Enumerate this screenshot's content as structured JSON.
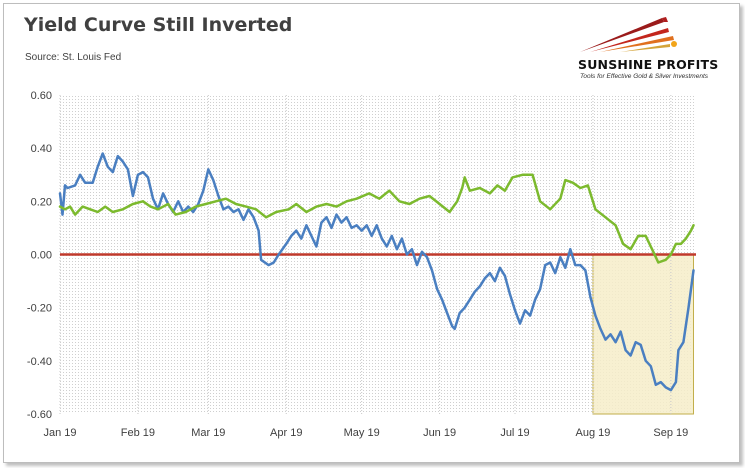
{
  "header": {
    "title": "Yield Curve Still Inverted",
    "source": "Source: St. Louis Fed"
  },
  "logo": {
    "name": "SUNSHINE PROFITS",
    "tagline": "Tools for Effective Gold & Silver Investments",
    "icon": "sunshine-rays-logo"
  },
  "colors": {
    "blue_series": "#4a7fc1",
    "green_series": "#7cba2e",
    "zero_line": "#c0392b",
    "highlight_fill": "#f6edc9",
    "highlight_border": "#c2ae4a"
  },
  "chart_data": {
    "type": "line",
    "title": "Yield Curve Still Inverted",
    "xlabel": "",
    "ylabel": "",
    "ylim": [
      -0.6,
      0.6
    ],
    "y_ticks": [
      "0.60",
      "0.40",
      "0.20",
      "0.00",
      "-0.20",
      "-0.40",
      "-0.60"
    ],
    "x_ticks": [
      "Jan 19",
      "Feb 19",
      "Mar 19",
      "Apr 19",
      "May 19",
      "Jun 19",
      "Jul 19",
      "Aug 19",
      "Sep 19"
    ],
    "grid": false,
    "legend": "none",
    "reference_line": 0.0,
    "highlight_range": [
      "2019-08-01",
      "2019-09-10"
    ],
    "series": [
      {
        "color": "#4a7fc1",
        "points": [
          [
            "2019-01-01",
            0.23
          ],
          [
            "2019-01-02",
            0.15
          ],
          [
            "2019-01-03",
            0.26
          ],
          [
            "2019-01-04",
            0.25
          ],
          [
            "2019-01-07",
            0.26
          ],
          [
            "2019-01-09",
            0.3
          ],
          [
            "2019-01-11",
            0.27
          ],
          [
            "2019-01-14",
            0.27
          ],
          [
            "2019-01-16",
            0.33
          ],
          [
            "2019-01-18",
            0.38
          ],
          [
            "2019-01-20",
            0.33
          ],
          [
            "2019-01-22",
            0.31
          ],
          [
            "2019-01-24",
            0.37
          ],
          [
            "2019-01-26",
            0.35
          ],
          [
            "2019-01-28",
            0.32
          ],
          [
            "2019-01-30",
            0.22
          ],
          [
            "2019-02-01",
            0.3
          ],
          [
            "2019-02-03",
            0.31
          ],
          [
            "2019-02-05",
            0.29
          ],
          [
            "2019-02-07",
            0.21
          ],
          [
            "2019-02-09",
            0.17
          ],
          [
            "2019-02-11",
            0.23
          ],
          [
            "2019-02-13",
            0.19
          ],
          [
            "2019-02-15",
            0.16
          ],
          [
            "2019-02-17",
            0.2
          ],
          [
            "2019-02-19",
            0.16
          ],
          [
            "2019-02-21",
            0.18
          ],
          [
            "2019-02-23",
            0.16
          ],
          [
            "2019-02-25",
            0.19
          ],
          [
            "2019-02-27",
            0.24
          ],
          [
            "2019-03-01",
            0.32
          ],
          [
            "2019-03-03",
            0.28
          ],
          [
            "2019-03-05",
            0.22
          ],
          [
            "2019-03-07",
            0.17
          ],
          [
            "2019-03-09",
            0.18
          ],
          [
            "2019-03-11",
            0.16
          ],
          [
            "2019-03-13",
            0.17
          ],
          [
            "2019-03-15",
            0.13
          ],
          [
            "2019-03-17",
            0.17
          ],
          [
            "2019-03-19",
            0.14
          ],
          [
            "2019-03-21",
            0.09
          ],
          [
            "2019-03-22",
            -0.02
          ],
          [
            "2019-03-25",
            -0.04
          ],
          [
            "2019-03-27",
            -0.03
          ],
          [
            "2019-03-29",
            0.0
          ],
          [
            "2019-04-01",
            0.04
          ],
          [
            "2019-04-03",
            0.07
          ],
          [
            "2019-04-05",
            0.09
          ],
          [
            "2019-04-07",
            0.06
          ],
          [
            "2019-04-09",
            0.11
          ],
          [
            "2019-04-11",
            0.07
          ],
          [
            "2019-04-13",
            0.03
          ],
          [
            "2019-04-15",
            0.12
          ],
          [
            "2019-04-17",
            0.14
          ],
          [
            "2019-04-19",
            0.1
          ],
          [
            "2019-04-21",
            0.15
          ],
          [
            "2019-04-23",
            0.12
          ],
          [
            "2019-04-25",
            0.14
          ],
          [
            "2019-04-27",
            0.1
          ],
          [
            "2019-04-29",
            0.11
          ],
          [
            "2019-05-01",
            0.09
          ],
          [
            "2019-05-03",
            0.11
          ],
          [
            "2019-05-05",
            0.07
          ],
          [
            "2019-05-07",
            0.11
          ],
          [
            "2019-05-09",
            0.06
          ],
          [
            "2019-05-11",
            0.03
          ],
          [
            "2019-05-13",
            0.07
          ],
          [
            "2019-05-15",
            0.02
          ],
          [
            "2019-05-17",
            0.06
          ],
          [
            "2019-05-19",
            0.0
          ],
          [
            "2019-05-21",
            0.02
          ],
          [
            "2019-05-23",
            -0.04
          ],
          [
            "2019-05-25",
            0.01
          ],
          [
            "2019-05-27",
            -0.01
          ],
          [
            "2019-05-29",
            -0.06
          ],
          [
            "2019-05-31",
            -0.13
          ],
          [
            "2019-06-02",
            -0.17
          ],
          [
            "2019-06-04",
            -0.22
          ],
          [
            "2019-06-06",
            -0.27
          ],
          [
            "2019-06-07",
            -0.28
          ],
          [
            "2019-06-09",
            -0.22
          ],
          [
            "2019-06-11",
            -0.2
          ],
          [
            "2019-06-13",
            -0.17
          ],
          [
            "2019-06-15",
            -0.14
          ],
          [
            "2019-06-17",
            -0.12
          ],
          [
            "2019-06-19",
            -0.09
          ],
          [
            "2019-06-21",
            -0.07
          ],
          [
            "2019-06-23",
            -0.1
          ],
          [
            "2019-06-25",
            -0.05
          ],
          [
            "2019-06-27",
            -0.08
          ],
          [
            "2019-06-29",
            -0.15
          ],
          [
            "2019-07-01",
            -0.21
          ],
          [
            "2019-07-03",
            -0.26
          ],
          [
            "2019-07-05",
            -0.21
          ],
          [
            "2019-07-07",
            -0.23
          ],
          [
            "2019-07-09",
            -0.17
          ],
          [
            "2019-07-11",
            -0.13
          ],
          [
            "2019-07-13",
            -0.04
          ],
          [
            "2019-07-15",
            -0.03
          ],
          [
            "2019-07-17",
            -0.07
          ],
          [
            "2019-07-19",
            -0.01
          ],
          [
            "2019-07-21",
            -0.05
          ],
          [
            "2019-07-23",
            0.02
          ],
          [
            "2019-07-25",
            -0.04
          ],
          [
            "2019-07-27",
            -0.04
          ],
          [
            "2019-07-29",
            -0.06
          ],
          [
            "2019-07-31",
            -0.16
          ],
          [
            "2019-08-02",
            -0.23
          ],
          [
            "2019-08-04",
            -0.28
          ],
          [
            "2019-08-06",
            -0.32
          ],
          [
            "2019-08-08",
            -0.3
          ],
          [
            "2019-08-10",
            -0.33
          ],
          [
            "2019-08-12",
            -0.29
          ],
          [
            "2019-08-14",
            -0.36
          ],
          [
            "2019-08-16",
            -0.38
          ],
          [
            "2019-08-18",
            -0.33
          ],
          [
            "2019-08-20",
            -0.34
          ],
          [
            "2019-08-22",
            -0.4
          ],
          [
            "2019-08-24",
            -0.42
          ],
          [
            "2019-08-26",
            -0.49
          ],
          [
            "2019-08-28",
            -0.48
          ],
          [
            "2019-08-30",
            -0.5
          ],
          [
            "2019-09-01",
            -0.51
          ],
          [
            "2019-09-03",
            -0.48
          ],
          [
            "2019-09-04",
            -0.36
          ],
          [
            "2019-09-06",
            -0.33
          ],
          [
            "2019-09-08",
            -0.2
          ],
          [
            "2019-09-10",
            -0.06
          ]
        ]
      },
      {
        "color": "#7cba2e",
        "points": [
          [
            "2019-01-01",
            0.18
          ],
          [
            "2019-01-03",
            0.17
          ],
          [
            "2019-01-05",
            0.18
          ],
          [
            "2019-01-07",
            0.15
          ],
          [
            "2019-01-10",
            0.18
          ],
          [
            "2019-01-13",
            0.17
          ],
          [
            "2019-01-16",
            0.16
          ],
          [
            "2019-01-19",
            0.18
          ],
          [
            "2019-01-22",
            0.16
          ],
          [
            "2019-01-26",
            0.17
          ],
          [
            "2019-01-30",
            0.19
          ],
          [
            "2019-02-03",
            0.2
          ],
          [
            "2019-02-06",
            0.18
          ],
          [
            "2019-02-09",
            0.17
          ],
          [
            "2019-02-13",
            0.19
          ],
          [
            "2019-02-16",
            0.15
          ],
          [
            "2019-02-20",
            0.16
          ],
          [
            "2019-02-24",
            0.18
          ],
          [
            "2019-02-28",
            0.19
          ],
          [
            "2019-03-04",
            0.2
          ],
          [
            "2019-03-08",
            0.21
          ],
          [
            "2019-03-12",
            0.19
          ],
          [
            "2019-03-16",
            0.18
          ],
          [
            "2019-03-20",
            0.17
          ],
          [
            "2019-03-24",
            0.14
          ],
          [
            "2019-03-28",
            0.16
          ],
          [
            "2019-04-02",
            0.17
          ],
          [
            "2019-04-05",
            0.19
          ],
          [
            "2019-04-09",
            0.16
          ],
          [
            "2019-04-13",
            0.18
          ],
          [
            "2019-04-17",
            0.19
          ],
          [
            "2019-04-21",
            0.18
          ],
          [
            "2019-04-25",
            0.2
          ],
          [
            "2019-04-29",
            0.21
          ],
          [
            "2019-05-04",
            0.23
          ],
          [
            "2019-05-08",
            0.21
          ],
          [
            "2019-05-12",
            0.24
          ],
          [
            "2019-05-16",
            0.2
          ],
          [
            "2019-05-20",
            0.19
          ],
          [
            "2019-05-24",
            0.21
          ],
          [
            "2019-05-28",
            0.22
          ],
          [
            "2019-06-01",
            0.19
          ],
          [
            "2019-06-05",
            0.16
          ],
          [
            "2019-06-08",
            0.2
          ],
          [
            "2019-06-10",
            0.25
          ],
          [
            "2019-06-11",
            0.29
          ],
          [
            "2019-06-13",
            0.24
          ],
          [
            "2019-06-17",
            0.25
          ],
          [
            "2019-06-21",
            0.23
          ],
          [
            "2019-06-24",
            0.26
          ],
          [
            "2019-06-27",
            0.24
          ],
          [
            "2019-06-30",
            0.29
          ],
          [
            "2019-07-04",
            0.3
          ],
          [
            "2019-07-08",
            0.3
          ],
          [
            "2019-07-11",
            0.2
          ],
          [
            "2019-07-15",
            0.17
          ],
          [
            "2019-07-19",
            0.21
          ],
          [
            "2019-07-21",
            0.28
          ],
          [
            "2019-07-24",
            0.27
          ],
          [
            "2019-07-27",
            0.25
          ],
          [
            "2019-07-30",
            0.26
          ],
          [
            "2019-08-02",
            0.17
          ],
          [
            "2019-08-06",
            0.14
          ],
          [
            "2019-08-10",
            0.11
          ],
          [
            "2019-08-13",
            0.04
          ],
          [
            "2019-08-16",
            0.02
          ],
          [
            "2019-08-19",
            0.07
          ],
          [
            "2019-08-22",
            0.07
          ],
          [
            "2019-08-25",
            0.01
          ],
          [
            "2019-08-27",
            -0.03
          ],
          [
            "2019-08-30",
            -0.02
          ],
          [
            "2019-09-01",
            0.0
          ],
          [
            "2019-09-03",
            0.04
          ],
          [
            "2019-09-05",
            0.04
          ],
          [
            "2019-09-07",
            0.06
          ],
          [
            "2019-09-09",
            0.09
          ],
          [
            "2019-09-10",
            0.11
          ]
        ]
      }
    ]
  }
}
